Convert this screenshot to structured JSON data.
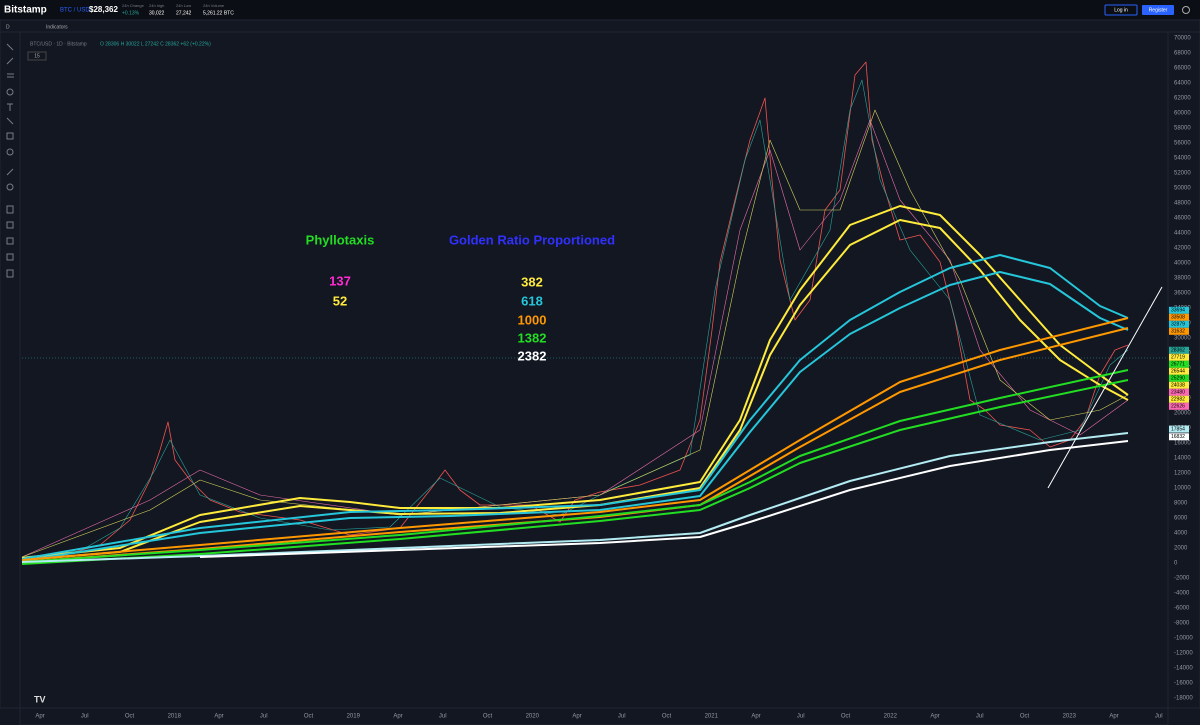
{
  "header": {
    "brand": "Bitstamp",
    "pair": "BTC / USD",
    "price": "$28,362",
    "stats": [
      {
        "label": "24h Change",
        "value": "+0.13%"
      },
      {
        "label": "24h high",
        "value": "30,022"
      },
      {
        "label": "24h Low",
        "value": "27,242"
      },
      {
        "label": "24h Volume",
        "value": "5,261.22 BTC"
      }
    ],
    "buttons": [
      "Log in",
      "Register"
    ]
  },
  "toolbar": {
    "interval": "D",
    "indicators": "Indicators"
  },
  "legend": {
    "symbol": "BTC/USD · 1D · Bitstamp",
    "ohlc": "O 28306 H 30022 L 27242 C 28362 +62 (+0.22%)",
    "badge": "15"
  },
  "annotations": {
    "left_title": "Phyllotaxis",
    "right_title": "Golden Ratio Proportioned",
    "left_numbers": [
      "137",
      "52"
    ],
    "right_numbers": [
      "382",
      "618",
      "1000",
      "1382",
      "2382"
    ]
  },
  "price_axis": [
    70000,
    68000,
    66000,
    64000,
    62000,
    60000,
    58000,
    56000,
    54000,
    52000,
    50000,
    48000,
    46000,
    44000,
    42000,
    40000,
    38000,
    36000,
    34000,
    32000,
    30000,
    28000,
    26000,
    24000,
    22000,
    20000,
    18000,
    16000,
    14000,
    12000,
    10000,
    8000,
    6000,
    4000,
    2000,
    0,
    -2000,
    -4000,
    -6000,
    -8000,
    -10000,
    -12000,
    -14000,
    -16000,
    -18000
  ],
  "price_tags": [
    33694,
    33508,
    32879,
    31632,
    28362,
    27719,
    26771,
    26544,
    25290,
    24038,
    23480,
    22982,
    22626,
    17854,
    16832
  ],
  "time_axis": [
    "Apr",
    "Jul",
    "Oct",
    "2018",
    "Apr",
    "Jul",
    "Oct",
    "2019",
    "Apr",
    "Jul",
    "Oct",
    "2020",
    "Apr",
    "Jul",
    "Oct",
    "2021",
    "Apr",
    "Jul",
    "Oct",
    "2022",
    "Apr",
    "Jul",
    "Oct",
    "2023",
    "Apr",
    "Jul"
  ]
}
